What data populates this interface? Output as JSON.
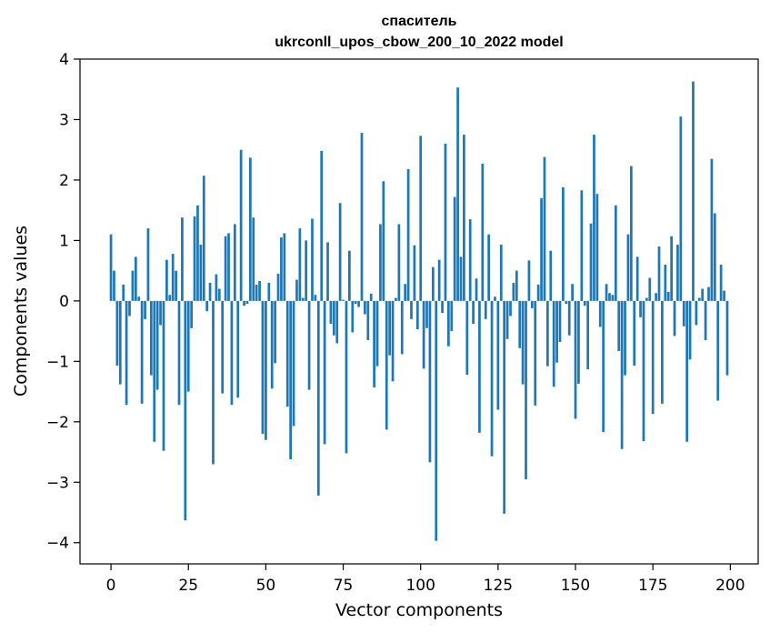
{
  "chart_data": {
    "type": "bar",
    "title": "спаситель",
    "subtitle": "ukrconll_upos_cbow_200_10_2022 model",
    "xlabel": "Vector components",
    "ylabel": "Components values",
    "xlim": [
      -10,
      209
    ],
    "ylim": [
      -4.35,
      4
    ],
    "xticks": [
      0,
      25,
      50,
      75,
      100,
      125,
      150,
      175,
      200
    ],
    "yticks": [
      -4,
      -3,
      -2,
      -1,
      0,
      1,
      2,
      3,
      4
    ],
    "ytick_labels": [
      "−4",
      "−3",
      "−2",
      "−1",
      "0",
      "1",
      "2",
      "3",
      "4"
    ],
    "bar_color": "#1f77b4",
    "values": [
      1.1,
      0.5,
      -1.07,
      -1.38,
      0.27,
      -1.72,
      -0.25,
      0.5,
      0.73,
      0.07,
      -1.7,
      -0.3,
      1.2,
      -1.23,
      -2.33,
      -1.47,
      -0.4,
      -2.48,
      0.68,
      0.1,
      0.78,
      0.5,
      -1.72,
      1.38,
      -3.63,
      -1.5,
      -0.45,
      1.4,
      1.58,
      0.93,
      2.07,
      -0.17,
      0.3,
      -2.7,
      0.44,
      0.2,
      -1.53,
      1.07,
      1.12,
      -1.72,
      1.27,
      -1.6,
      2.5,
      -0.08,
      -0.05,
      2.37,
      1.38,
      0.27,
      0.33,
      -2.2,
      -2.3,
      0.3,
      -1.45,
      -1.03,
      0.45,
      1.05,
      1.12,
      -1.75,
      -2.62,
      -2.07,
      0.35,
      1.2,
      0.05,
      1.0,
      -1.47,
      1.36,
      0.1,
      -3.22,
      2.48,
      -2.37,
      0.97,
      -0.38,
      -0.57,
      -0.7,
      1.62,
      0.02,
      -2.52,
      0.83,
      -0.52,
      -0.05,
      -0.1,
      2.78,
      -0.22,
      -0.65,
      0.12,
      -1.43,
      -1.08,
      1.27,
      1.98,
      -2.13,
      -0.9,
      -1.33,
      0.05,
      1.27,
      -0.88,
      0.28,
      2.18,
      -0.3,
      0.92,
      -0.47,
      2.73,
      -1.12,
      -0.45,
      -2.67,
      0.56,
      -3.97,
      0.68,
      -0.2,
      2.6,
      -0.75,
      -0.5,
      1.72,
      3.53,
      0.73,
      2.75,
      -1.22,
      1.35,
      -0.38,
      0.37,
      -2.18,
      2.27,
      -0.3,
      1.1,
      -2.57,
      0.07,
      -1.8,
      0.93,
      -3.52,
      -0.63,
      -0.25,
      0.3,
      0.5,
      -0.78,
      -1.38,
      -2.95,
      0.67,
      -0.12,
      -1.73,
      0.27,
      1.7,
      2.38,
      -1.08,
      0.83,
      -1.42,
      -1.02,
      -0.68,
      1.88,
      -0.05,
      -0.57,
      0.28,
      -1.95,
      -1.37,
      1.83,
      -0.08,
      -1.13,
      1.28,
      2.75,
      1.77,
      -0.43,
      -2.17,
      0.28,
      0.13,
      0.1,
      1.58,
      -0.83,
      -2.45,
      -1.23,
      1.1,
      2.23,
      -1.07,
      0.73,
      -0.27,
      -2.32,
      0.05,
      0.38,
      -1.87,
      0.13,
      0.9,
      -1.7,
      0.6,
      0.15,
      1.07,
      -0.58,
      0.93,
      3.05,
      -0.42,
      -2.33,
      -0.97,
      3.63,
      -0.4,
      0.05,
      0.2,
      -0.65,
      0.23,
      2.35,
      1.45,
      -1.65,
      0.6,
      0.17,
      -1.23
    ]
  }
}
